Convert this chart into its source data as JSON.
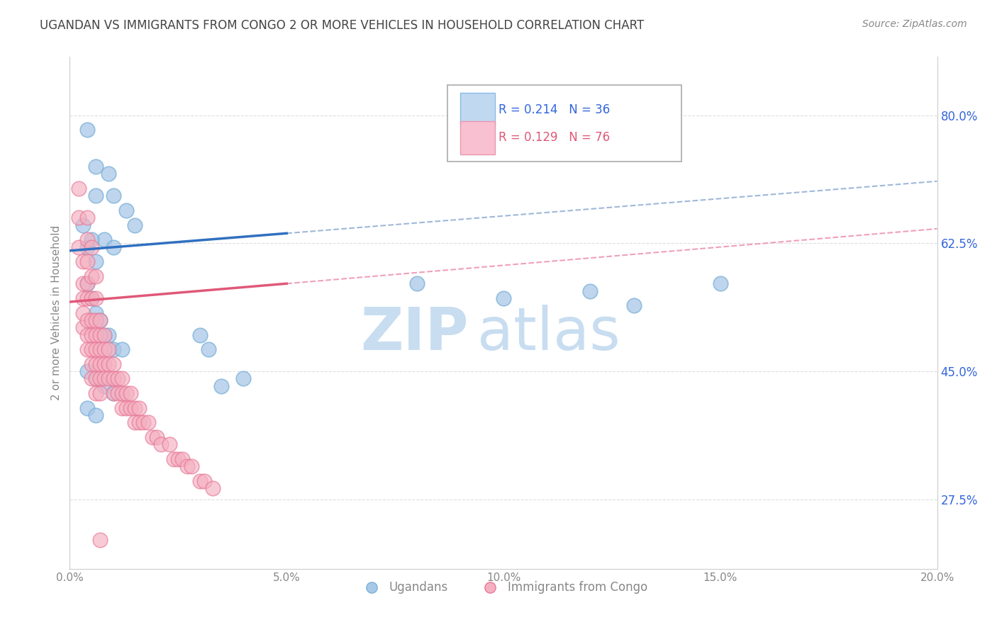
{
  "title": "UGANDAN VS IMMIGRANTS FROM CONGO 2 OR MORE VEHICLES IN HOUSEHOLD CORRELATION CHART",
  "source_text": "Source: ZipAtlas.com",
  "ylabel": "2 or more Vehicles in Household",
  "legend_label1": "Ugandans",
  "legend_label2": "Immigrants from Congo",
  "ugandan_color": "#a8c8e8",
  "ugandan_edge": "#7ab0d8",
  "congo_color": "#f4b0c0",
  "congo_edge": "#e87898",
  "ugandan_line_color": "#3070c0",
  "congo_line_color": "#e05878",
  "ugandan_dash_color": "#a0b8d8",
  "congo_dash_color": "#f0a0b8",
  "watermark_zip": "ZIP",
  "watermark_atlas": "atlas",
  "watermark_color": "#d8e8f4",
  "xlim": [
    0.0,
    0.2
  ],
  "ylim": [
    0.18,
    0.88
  ],
  "xticks": [
    0.0,
    0.05,
    0.1,
    0.15,
    0.2
  ],
  "yticks": [
    0.275,
    0.45,
    0.625,
    0.8
  ],
  "ugandan_r": 0.214,
  "ugandan_n": 36,
  "congo_r": 0.129,
  "congo_n": 76,
  "ugandan_points": [
    [
      0.004,
      0.78
    ],
    [
      0.006,
      0.73
    ],
    [
      0.006,
      0.69
    ],
    [
      0.009,
      0.72
    ],
    [
      0.01,
      0.69
    ],
    [
      0.013,
      0.67
    ],
    [
      0.015,
      0.65
    ],
    [
      0.004,
      0.62
    ],
    [
      0.006,
      0.6
    ],
    [
      0.008,
      0.63
    ],
    [
      0.01,
      0.62
    ],
    [
      0.003,
      0.65
    ],
    [
      0.005,
      0.63
    ],
    [
      0.004,
      0.57
    ],
    [
      0.005,
      0.55
    ],
    [
      0.006,
      0.53
    ],
    [
      0.007,
      0.52
    ],
    [
      0.008,
      0.5
    ],
    [
      0.009,
      0.5
    ],
    [
      0.01,
      0.48
    ],
    [
      0.012,
      0.48
    ],
    [
      0.004,
      0.45
    ],
    [
      0.006,
      0.44
    ],
    [
      0.008,
      0.43
    ],
    [
      0.01,
      0.42
    ],
    [
      0.004,
      0.4
    ],
    [
      0.006,
      0.39
    ],
    [
      0.03,
      0.5
    ],
    [
      0.032,
      0.48
    ],
    [
      0.08,
      0.57
    ],
    [
      0.1,
      0.55
    ],
    [
      0.12,
      0.56
    ],
    [
      0.13,
      0.54
    ],
    [
      0.15,
      0.57
    ],
    [
      0.035,
      0.43
    ],
    [
      0.04,
      0.44
    ]
  ],
  "congo_points": [
    [
      0.002,
      0.7
    ],
    [
      0.002,
      0.66
    ],
    [
      0.002,
      0.62
    ],
    [
      0.003,
      0.6
    ],
    [
      0.003,
      0.57
    ],
    [
      0.003,
      0.55
    ],
    [
      0.003,
      0.53
    ],
    [
      0.003,
      0.51
    ],
    [
      0.004,
      0.66
    ],
    [
      0.004,
      0.63
    ],
    [
      0.004,
      0.6
    ],
    [
      0.004,
      0.57
    ],
    [
      0.004,
      0.55
    ],
    [
      0.004,
      0.52
    ],
    [
      0.004,
      0.5
    ],
    [
      0.004,
      0.48
    ],
    [
      0.005,
      0.62
    ],
    [
      0.005,
      0.58
    ],
    [
      0.005,
      0.55
    ],
    [
      0.005,
      0.52
    ],
    [
      0.005,
      0.5
    ],
    [
      0.005,
      0.48
    ],
    [
      0.005,
      0.46
    ],
    [
      0.005,
      0.44
    ],
    [
      0.006,
      0.58
    ],
    [
      0.006,
      0.55
    ],
    [
      0.006,
      0.52
    ],
    [
      0.006,
      0.5
    ],
    [
      0.006,
      0.48
    ],
    [
      0.006,
      0.46
    ],
    [
      0.006,
      0.44
    ],
    [
      0.006,
      0.42
    ],
    [
      0.007,
      0.52
    ],
    [
      0.007,
      0.5
    ],
    [
      0.007,
      0.48
    ],
    [
      0.007,
      0.46
    ],
    [
      0.007,
      0.44
    ],
    [
      0.007,
      0.42
    ],
    [
      0.008,
      0.5
    ],
    [
      0.008,
      0.48
    ],
    [
      0.008,
      0.46
    ],
    [
      0.008,
      0.44
    ],
    [
      0.009,
      0.48
    ],
    [
      0.009,
      0.46
    ],
    [
      0.009,
      0.44
    ],
    [
      0.01,
      0.46
    ],
    [
      0.01,
      0.44
    ],
    [
      0.01,
      0.42
    ],
    [
      0.011,
      0.44
    ],
    [
      0.011,
      0.42
    ],
    [
      0.012,
      0.44
    ],
    [
      0.012,
      0.42
    ],
    [
      0.012,
      0.4
    ],
    [
      0.013,
      0.42
    ],
    [
      0.013,
      0.4
    ],
    [
      0.014,
      0.42
    ],
    [
      0.014,
      0.4
    ],
    [
      0.015,
      0.4
    ],
    [
      0.015,
      0.38
    ],
    [
      0.016,
      0.4
    ],
    [
      0.016,
      0.38
    ],
    [
      0.017,
      0.38
    ],
    [
      0.018,
      0.38
    ],
    [
      0.019,
      0.36
    ],
    [
      0.02,
      0.36
    ],
    [
      0.021,
      0.35
    ],
    [
      0.023,
      0.35
    ],
    [
      0.024,
      0.33
    ],
    [
      0.025,
      0.33
    ],
    [
      0.026,
      0.33
    ],
    [
      0.027,
      0.32
    ],
    [
      0.028,
      0.32
    ],
    [
      0.03,
      0.3
    ],
    [
      0.031,
      0.3
    ],
    [
      0.033,
      0.29
    ],
    [
      0.007,
      0.22
    ]
  ]
}
